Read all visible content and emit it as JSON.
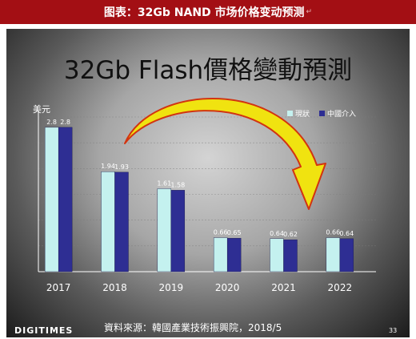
{
  "header": {
    "title": "图表：32Gb NAND 市场价格变动预测",
    "mark": "↵"
  },
  "slide": {
    "title": "32Gb Flash價格變動預測",
    "source": "資料來源：韓國產業技術振興院，2018/5",
    "logo": "DIGITIMES",
    "page_number": "33"
  },
  "chart_data": {
    "type": "bar",
    "title": "32Gb Flash價格變動預測",
    "ylabel": "美元",
    "xlabel": "",
    "categories": [
      "2017",
      "2018",
      "2019",
      "2020",
      "2021",
      "2022"
    ],
    "series": [
      {
        "name": "現狀",
        "values": [
          2.8,
          1.94,
          1.61,
          0.66,
          0.64,
          0.66
        ],
        "labels": [
          "2.8",
          "1.94",
          "1.61",
          "0.66",
          "0.64",
          "0.66"
        ],
        "color": "#c4f1ef"
      },
      {
        "name": "中國介入",
        "values": [
          2.8,
          1.93,
          1.58,
          0.65,
          0.62,
          0.64
        ],
        "labels": [
          "2.8",
          "1.93",
          "1.58",
          "0.65",
          "0.62",
          "0.64"
        ],
        "color": "#2e2e93"
      }
    ],
    "ylim": [
      0,
      3.0
    ],
    "grid": true,
    "legend": "top-right",
    "annotation": "curved yellow arrow from 2018 down to 2021"
  },
  "colors": {
    "header_bg": "#a30f14",
    "arrow_fill": "#f0e310",
    "arrow_stroke": "#d23410"
  }
}
